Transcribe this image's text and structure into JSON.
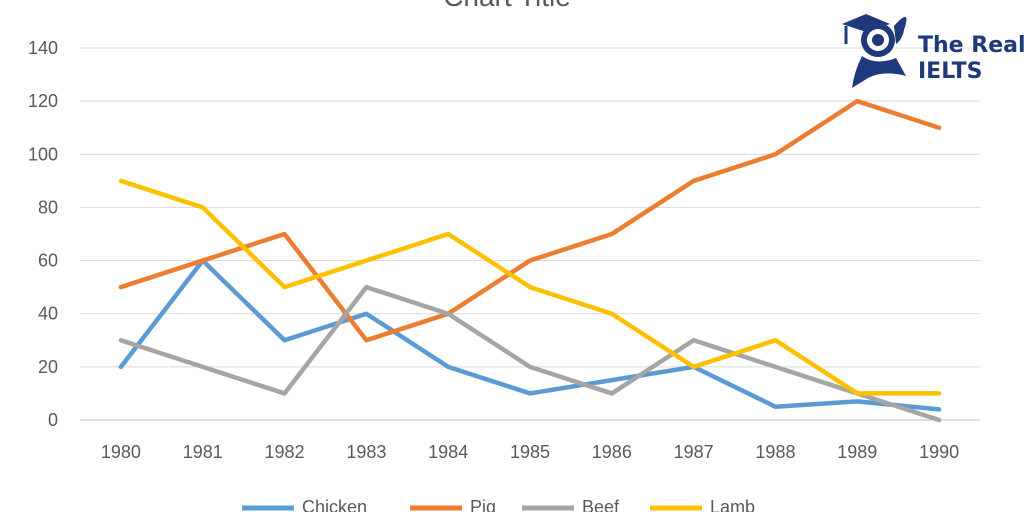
{
  "chart_data": {
    "type": "line",
    "title": "Chart Title",
    "xlabel": "",
    "ylabel": "",
    "categories": [
      "1980",
      "1981",
      "1982",
      "1983",
      "1984",
      "1985",
      "1986",
      "1987",
      "1988",
      "1989",
      "1990"
    ],
    "ylim": [
      0,
      140
    ],
    "yticks": [
      0,
      20,
      40,
      60,
      80,
      100,
      120,
      140
    ],
    "grid": true,
    "legend_position": "bottom",
    "series": [
      {
        "name": "Chicken",
        "color": "#5b9bd5",
        "values": [
          20,
          60,
          30,
          40,
          20,
          10,
          15,
          20,
          5,
          7,
          4
        ]
      },
      {
        "name": "Pig",
        "color": "#ed7d31",
        "values": [
          50,
          60,
          70,
          30,
          40,
          60,
          70,
          90,
          100,
          120,
          110
        ]
      },
      {
        "name": "Beef",
        "color": "#a5a5a5",
        "values": [
          30,
          20,
          10,
          50,
          40,
          20,
          10,
          30,
          20,
          10,
          0
        ]
      },
      {
        "name": "Lamb",
        "color": "#ffc000",
        "values": [
          90,
          80,
          50,
          60,
          70,
          50,
          40,
          20,
          30,
          10,
          10
        ]
      }
    ]
  },
  "logo": {
    "line1": "The Real",
    "line2": "IELTS",
    "icon": "graduate-icon",
    "color": "#1f3a7a"
  }
}
